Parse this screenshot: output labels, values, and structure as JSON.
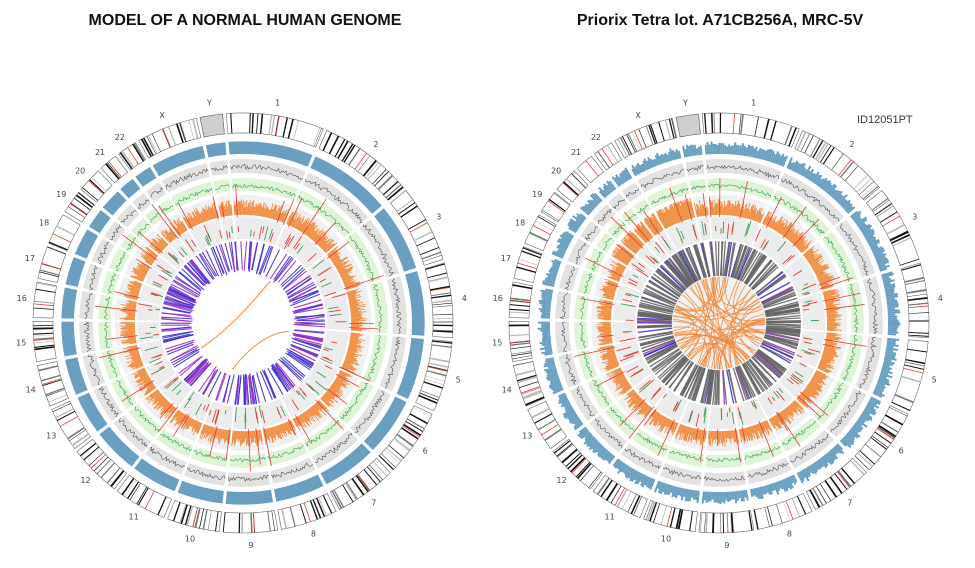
{
  "titles": {
    "left": "MODEL OF A NORMAL HUMAN GENOME",
    "right": "Priorix Tetra lot. A71CB256A, MRC-5V"
  },
  "sample_id": "ID12051PT",
  "chromosomes": [
    "1",
    "2",
    "3",
    "4",
    "5",
    "6",
    "7",
    "8",
    "9",
    "10",
    "11",
    "12",
    "13",
    "14",
    "15",
    "16",
    "17",
    "18",
    "19",
    "20",
    "21",
    "22",
    "X",
    "Y"
  ],
  "colors": {
    "coverage_track": "#6a9fc2",
    "green_track_bg": "#dff3d6",
    "green_line": "#3aa05a",
    "grey_track_bg": "#e2e2e2",
    "dark_line": "#555555",
    "orange_hist": "#f28a3c",
    "red_marks": "#e0413a",
    "link_blue": "#3b2fd0",
    "link_purple": "#9a2fc8",
    "link_grey": "#666666",
    "link_orange": "#f28a3c",
    "ideogram_band": "#111111",
    "centromere": "#e0413a"
  }
}
